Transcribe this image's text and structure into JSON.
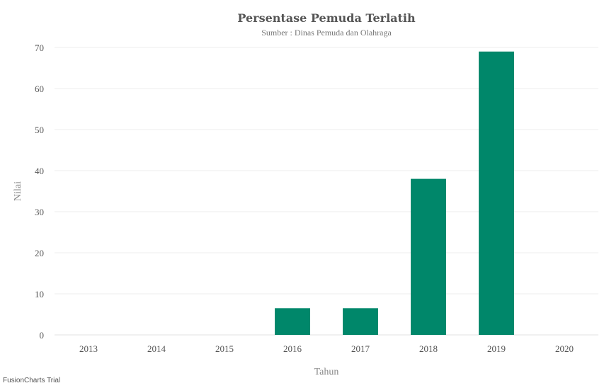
{
  "chart_data": {
    "type": "bar",
    "title": "Persentase Pemuda Terlatih",
    "subtitle": "Sumber : Dinas Pemuda dan Olahraga",
    "xlabel": "Tahun",
    "ylabel": "Nilai",
    "categories": [
      "2013",
      "2014",
      "2015",
      "2016",
      "2017",
      "2018",
      "2019",
      "2020"
    ],
    "values": [
      0,
      0,
      0,
      6.5,
      6.5,
      38,
      69,
      0
    ],
    "ylim": [
      0,
      70
    ],
    "yticks": [
      0,
      10,
      20,
      30,
      40,
      50,
      60,
      70
    ],
    "grid": true,
    "bar_color": "#00876a"
  },
  "watermark": "FusionCharts Trial"
}
